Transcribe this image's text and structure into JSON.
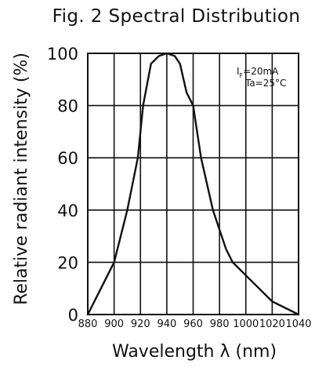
{
  "chart_data": {
    "type": "line",
    "title": "Fig. 2 Spectral Distribution",
    "xlabel": "Wavelength λ (nm)",
    "ylabel": "Relative radiant intensity (%)",
    "xlim": [
      880,
      1040
    ],
    "ylim": [
      0,
      100
    ],
    "grid": true,
    "x_ticks": [
      880,
      900,
      920,
      940,
      960,
      980,
      1000,
      1020,
      1040
    ],
    "y_ticks": [
      0,
      20,
      40,
      60,
      80,
      100
    ],
    "x_tick_labels": [
      "880",
      "900",
      "920",
      "940",
      "960",
      "980",
      "1000",
      "1020",
      "1040"
    ],
    "y_tick_labels": [
      "0",
      "20",
      "40",
      "60",
      "80",
      "100"
    ],
    "annotation": {
      "line1_main": "I",
      "line1_sub": "F",
      "line1_rest": "=20mA",
      "line2": "Ta=25°C"
    },
    "series": [
      {
        "x": [
          880,
          900,
          910,
          918,
          922,
          928,
          934,
          940,
          946,
          950,
          955,
          960,
          966,
          975,
          985,
          990,
          1000,
          1020,
          1040
        ],
        "y": [
          0,
          20,
          40,
          60,
          80,
          96,
          99,
          100,
          99,
          96,
          85,
          80,
          60,
          40,
          25,
          20,
          15,
          5,
          0
        ]
      }
    ]
  }
}
